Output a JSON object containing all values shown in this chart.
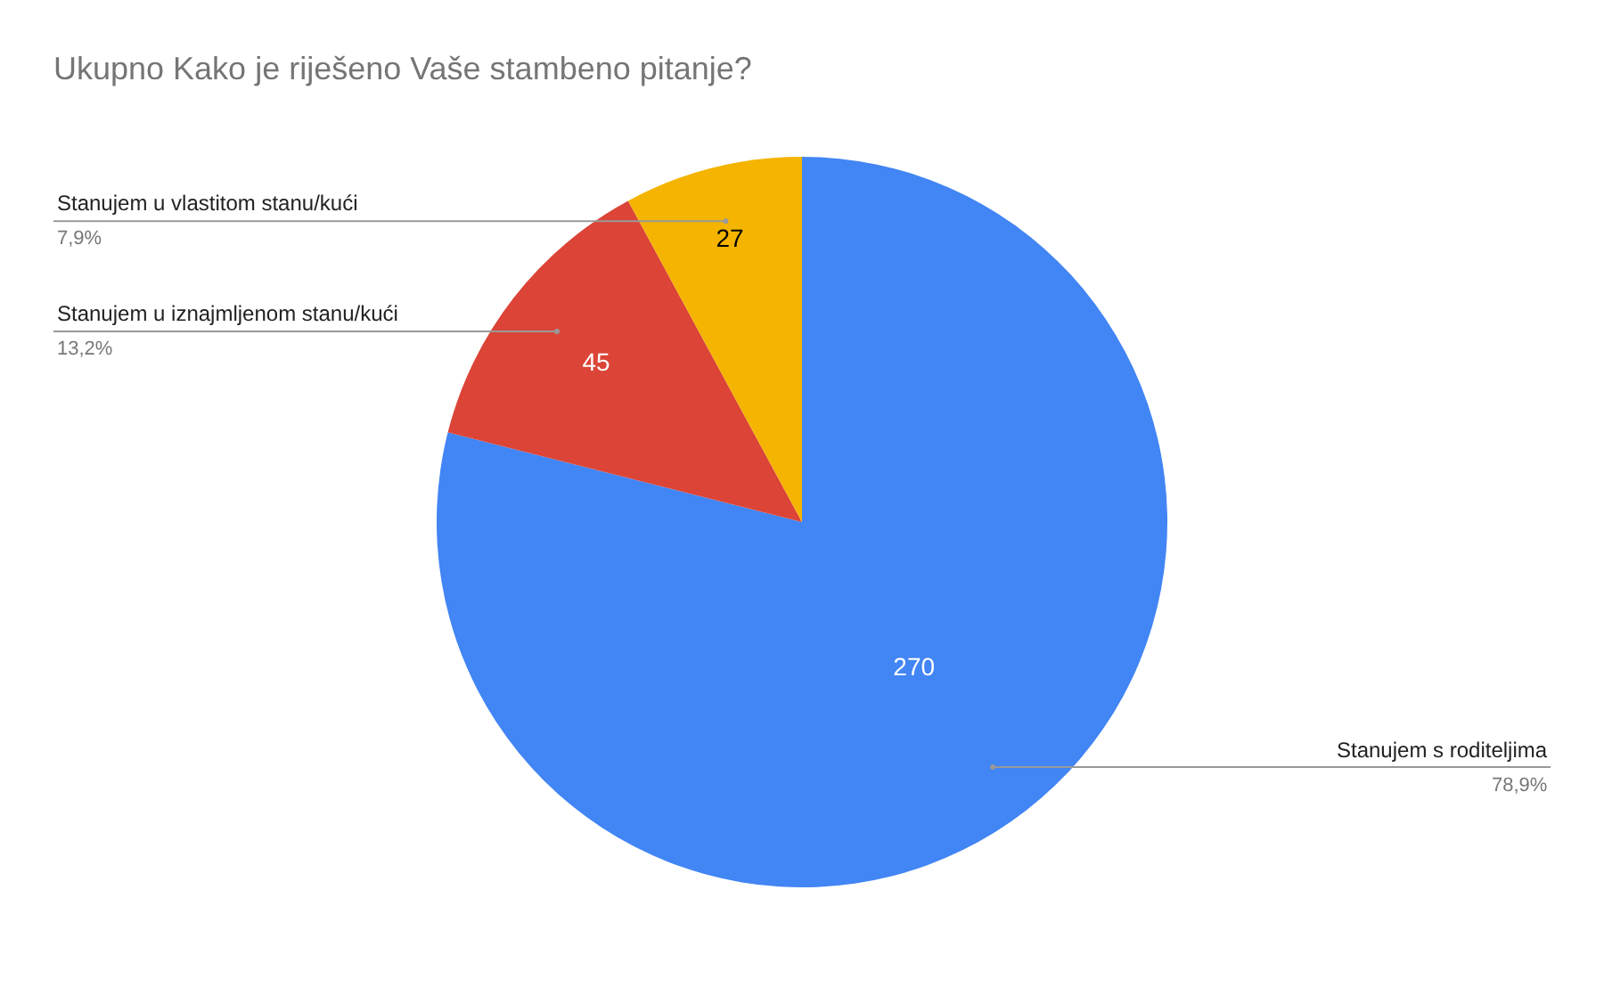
{
  "chart_data": {
    "type": "pie",
    "title": "Ukupno Kako je riješeno Vaše stambeno pitanje?",
    "categories": [
      "Stanujem s roditeljima",
      "Stanujem u iznajmljenom stanu/kući",
      "Stanujem u vlastitom stanu/kući"
    ],
    "values": [
      270,
      45,
      27
    ],
    "colors": [
      "#4285f4",
      "#db4437",
      "#f4b400"
    ],
    "data_labels": true,
    "legend": false,
    "annotations": [
      "78,9%",
      "13,2%",
      "7,9%"
    ]
  }
}
